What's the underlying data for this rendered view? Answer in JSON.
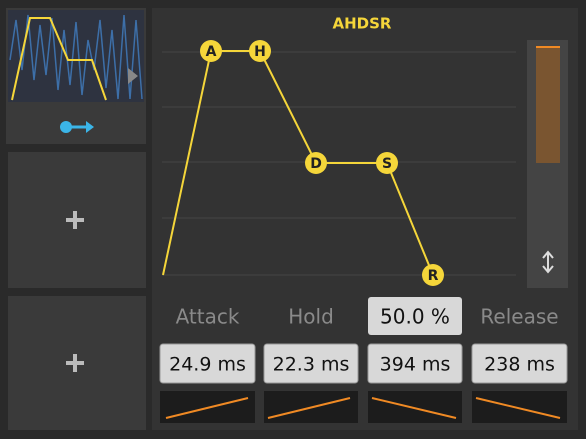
{
  "panel": {
    "title": "AHDSR",
    "nodes": [
      "A",
      "H",
      "D",
      "S",
      "R"
    ],
    "params": [
      {
        "label": "Attack",
        "value": "24.9 ms"
      },
      {
        "label": "Hold",
        "value": "22.3 ms"
      },
      {
        "label": "50.0 %",
        "value": "394 ms"
      },
      {
        "label": "Release",
        "value": "238 ms"
      }
    ]
  }
}
